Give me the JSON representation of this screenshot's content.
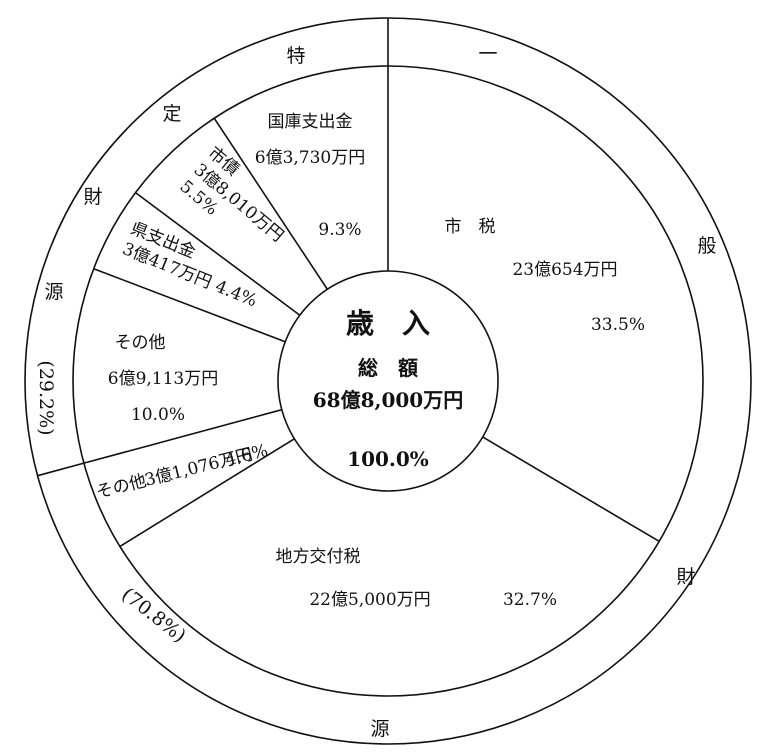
{
  "chart_data": {
    "type": "pie",
    "center": {
      "title": "歳　入",
      "total_label": "総　額",
      "total_value": "68億8,000万円",
      "total_percent": "100.0%"
    },
    "slices": [
      {
        "label": "市　税",
        "value_text": "23億654万円",
        "percent_text": "33.5%",
        "percent": 33.5,
        "group": "一般財源"
      },
      {
        "label": "地方交付税",
        "value_text": "22億5,000万円",
        "percent_text": "32.7%",
        "percent": 32.7,
        "group": "一般財源"
      },
      {
        "label": "その他",
        "value_text": "3億1,076万円",
        "percent_text": "4.6%",
        "percent": 4.6,
        "group": "一般財源"
      },
      {
        "label": "その他",
        "value_text": "6億9,113万円",
        "percent_text": "10.0%",
        "percent": 10.0,
        "group": "特定財源"
      },
      {
        "label": "県支出金",
        "value_text": "3億417万円",
        "percent_text": "4.4%",
        "percent": 4.4,
        "group": "特定財源"
      },
      {
        "label": "市債",
        "value_text": "3億8,010万円",
        "percent_text": "5.5%",
        "percent": 5.5,
        "group": "特定財源"
      },
      {
        "label": "国庫支出金",
        "value_text": "6億3,730万円",
        "percent_text": "9.3%",
        "percent": 9.3,
        "group": "特定財源"
      }
    ],
    "groups": [
      {
        "name": "一般財源",
        "chars": [
          "一",
          "般",
          "財",
          "源"
        ],
        "percent_text": "(70.8%)",
        "percent": 70.8
      },
      {
        "name": "特定財源",
        "chars": [
          "特",
          "定",
          "財",
          "源"
        ],
        "percent_text": "(29.2%)",
        "percent": 29.2
      }
    ]
  }
}
